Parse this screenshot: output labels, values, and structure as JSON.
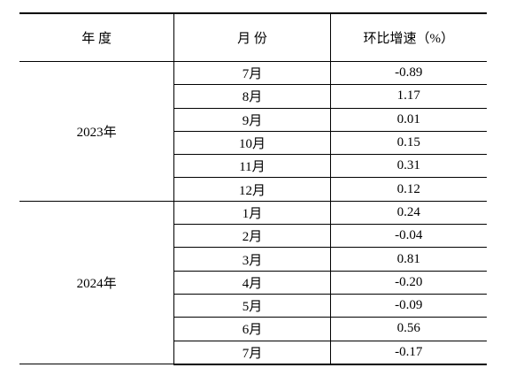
{
  "table": {
    "header": [
      "年 度",
      "月 份",
      "环比增速（%）"
    ],
    "groups": [
      {
        "year": "2023年",
        "rows": [
          {
            "month": "7月",
            "value": "-0.89"
          },
          {
            "month": "8月",
            "value": "1.17"
          },
          {
            "month": "9月",
            "value": "0.01"
          },
          {
            "month": "10月",
            "value": "0.15"
          },
          {
            "month": "11月",
            "value": "0.31"
          },
          {
            "month": "12月",
            "value": "0.12"
          }
        ]
      },
      {
        "year": "2024年",
        "rows": [
          {
            "month": "1月",
            "value": "0.24"
          },
          {
            "month": "2月",
            "value": "-0.04"
          },
          {
            "month": "3月",
            "value": "0.81"
          },
          {
            "month": "4月",
            "value": "-0.20"
          },
          {
            "month": "5月",
            "value": "-0.09"
          },
          {
            "month": "6月",
            "value": "0.56"
          },
          {
            "month": "7月",
            "value": "-0.17"
          }
        ]
      }
    ]
  }
}
